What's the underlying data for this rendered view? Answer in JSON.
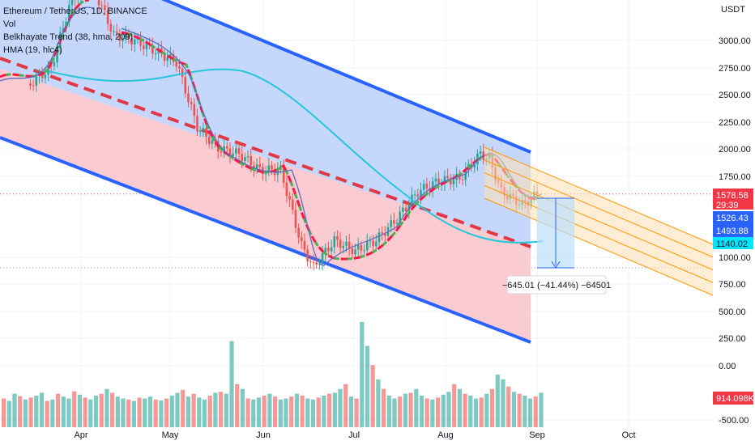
{
  "legend": {
    "title": "Ethereum / TetherUS, 1D, BINANCE",
    "line2": "Vol",
    "line3": "Belkhayate Trend (38, hma, 209)",
    "line4": "HMA (19, hlc4)"
  },
  "chart_data": {
    "type": "line",
    "title": "Ethereum / TetherUS, 1D, BINANCE",
    "currency_label": "USDT",
    "y_ticks": [
      "3000.00",
      "2750.00",
      "2500.00",
      "2250.00",
      "2000.00",
      "1750.00",
      "1000.00",
      "750.00",
      "500.00",
      "250.00",
      "0.00",
      "-500.00"
    ],
    "x_ticks": [
      "Apr",
      "May",
      "Jun",
      "Jul",
      "Aug",
      "Sep",
      "Oct"
    ],
    "last_price": 1578.58,
    "countdown": "29:39",
    "price_tags": [
      "1578.58",
      "1526.43",
      "1493.88",
      "1140.02",
      "914.098K"
    ],
    "measure_label": "−645.01 (−41.44%) −64501",
    "series": [
      {
        "values": [
          {
            "date": "2022-03-15",
            "value": 2600
          },
          {
            "date": "2022-03-22",
            "value": 2750
          },
          {
            "date": "2022-03-29",
            "value": 3400
          },
          {
            "date": "2022-04-05",
            "value": 3500
          },
          {
            "date": "2022-04-12",
            "value": 3050
          },
          {
            "date": "2022-04-19",
            "value": 3000
          },
          {
            "date": "2022-04-26",
            "value": 2900
          },
          {
            "date": "2022-05-03",
            "value": 2800
          },
          {
            "date": "2022-05-10",
            "value": 2200
          },
          {
            "date": "2022-05-17",
            "value": 2000
          },
          {
            "date": "2022-05-24",
            "value": 1950
          },
          {
            "date": "2022-05-31",
            "value": 1800
          },
          {
            "date": "2022-06-07",
            "value": 1800
          },
          {
            "date": "2022-06-14",
            "value": 1100
          },
          {
            "date": "2022-06-18",
            "value": 900
          },
          {
            "date": "2022-06-25",
            "value": 1150
          },
          {
            "date": "2022-07-02",
            "value": 1050
          },
          {
            "date": "2022-07-09",
            "value": 1150
          },
          {
            "date": "2022-07-16",
            "value": 1350
          },
          {
            "date": "2022-07-23",
            "value": 1600
          },
          {
            "date": "2022-07-30",
            "value": 1700
          },
          {
            "date": "2022-08-06",
            "value": 1720
          },
          {
            "date": "2022-08-13",
            "value": 1950
          },
          {
            "date": "2022-08-16",
            "value": 1900
          },
          {
            "date": "2022-08-20",
            "value": 1600
          },
          {
            "date": "2022-08-27",
            "value": 1480
          },
          {
            "date": "2022-09-01",
            "value": 1578
          }
        ]
      }
    ],
    "volume": [
      60,
      55,
      70,
      65,
      58,
      62,
      66,
      72,
      55,
      58,
      70,
      64,
      60,
      75,
      68,
      62,
      58,
      66,
      70,
      80,
      72,
      64,
      60,
      58,
      55,
      62,
      60,
      64,
      58,
      56,
      60,
      66,
      72,
      78,
      64,
      70,
      62,
      58,
      66,
      72,
      74,
      70,
      180,
      90,
      80,
      60,
      58,
      62,
      66,
      70,
      64,
      58,
      60,
      64,
      70,
      66,
      60,
      58,
      62,
      66,
      70,
      72,
      80,
      90,
      64,
      60,
      220,
      170,
      130,
      100,
      80,
      66,
      60,
      64,
      70,
      72,
      80,
      66,
      60,
      58,
      62,
      68,
      74,
      90,
      80,
      70,
      66,
      60,
      62,
      70,
      80,
      110,
      100,
      85,
      74,
      70,
      66,
      60,
      64,
      72
    ],
    "channel_colors": {
      "upper": "#bcd0fb",
      "lower": "#f9c2c8",
      "border": "#2962ff",
      "median": "#e23845"
    },
    "colors": {
      "up": "#26a69a",
      "down": "#ef5350",
      "trend_up": "#4caf50",
      "trend_dn": "#ff1744",
      "hma": "#26c6da",
      "fork": "#ff9800"
    }
  }
}
